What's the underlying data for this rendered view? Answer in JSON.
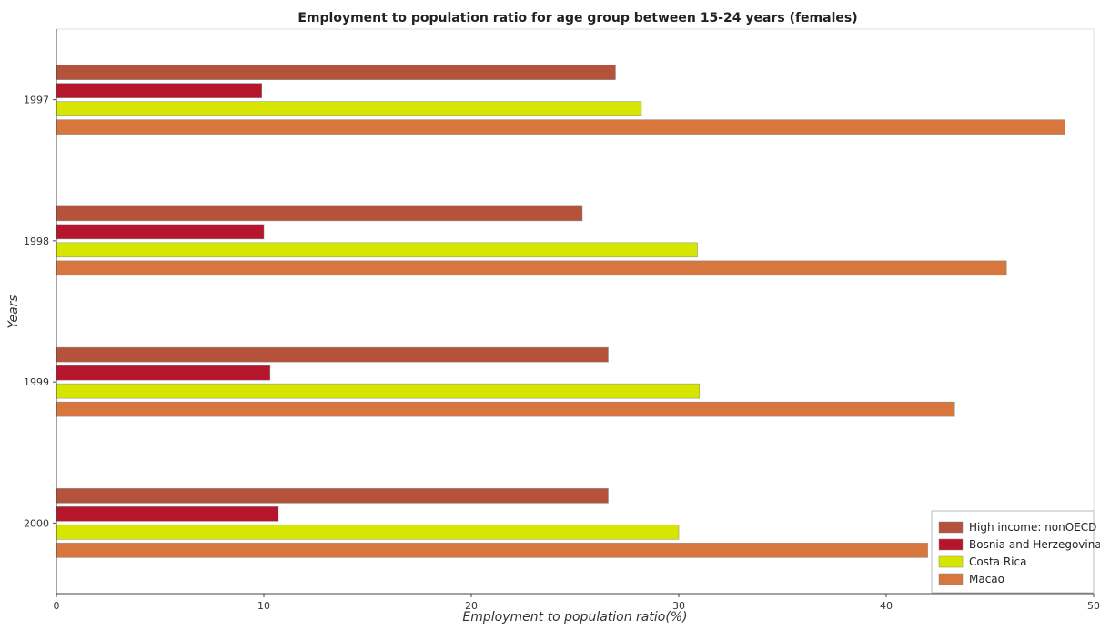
{
  "chart_data": {
    "type": "bar",
    "orientation": "horizontal",
    "title": "Employment to population ratio for age group between 15-24 years (females)",
    "xlabel": "Employment to population ratio(%)",
    "ylabel": "Years",
    "categories": [
      "1997",
      "1998",
      "1999",
      "2000"
    ],
    "xlim": [
      0,
      50
    ],
    "xticks": [
      0,
      10,
      20,
      30,
      40,
      50
    ],
    "series": [
      {
        "name": "High income: nonOECD",
        "color": "#b5523b",
        "values": [
          26.95,
          25.35,
          26.6,
          26.6
        ]
      },
      {
        "name": "Bosnia and Herzegovina",
        "color": "#b5162b",
        "values": [
          9.9,
          10.0,
          10.3,
          10.7
        ]
      },
      {
        "name": "Costa Rica",
        "color": "#d6e600",
        "values": [
          28.2,
          30.9,
          31.0,
          30.0
        ]
      },
      {
        "name": "Macao",
        "color": "#d7763d",
        "values": [
          48.6,
          45.8,
          43.3,
          42.0
        ]
      }
    ],
    "legend": {
      "position": "bottom-right"
    },
    "grid": false
  }
}
